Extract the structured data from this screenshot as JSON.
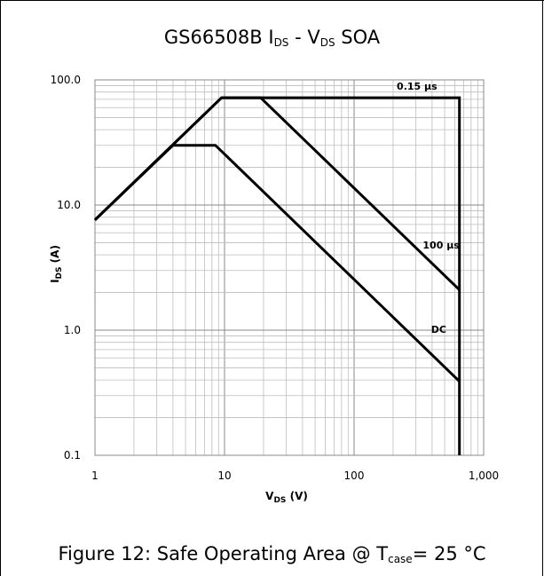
{
  "chart_data": {
    "type": "line",
    "title": {
      "main": "GS66508B I",
      "sub1": "DS",
      "mid": " - V",
      "sub2": "DS",
      "end": " SOA"
    },
    "xlabel": {
      "main": "V",
      "sub": "DS",
      "end": " (V)"
    },
    "ylabel": {
      "main": "I",
      "sub": "DS",
      "end": "  (A)"
    },
    "x_scale": "log",
    "y_scale": "log",
    "xlim": [
      1,
      1000
    ],
    "ylim": [
      0.1,
      100
    ],
    "x_ticks": [
      1,
      10,
      100,
      1000
    ],
    "x_tick_labels": [
      "1",
      "10",
      "100",
      "1,000"
    ],
    "y_ticks": [
      0.1,
      1,
      10,
      100
    ],
    "y_tick_labels": [
      "0.1",
      "1.0",
      "10.0",
      "100.0"
    ],
    "grid": true,
    "series": [
      {
        "name": "0.15 µs",
        "x": [
          1,
          9.5,
          650,
          650
        ],
        "y": [
          7.6,
          72,
          72,
          0.1
        ]
      },
      {
        "name": "100 µs",
        "x": [
          1,
          9.5,
          19,
          650
        ],
        "y": [
          7.6,
          72,
          72,
          2.1
        ]
      },
      {
        "name": "DC",
        "x": [
          1,
          4,
          8.5,
          650
        ],
        "y": [
          7.6,
          30,
          30,
          0.39
        ]
      }
    ]
  },
  "caption": {
    "main": "Figure 12: Safe Operating Area @ T",
    "sub": "case",
    "end": "= 25 °C"
  }
}
